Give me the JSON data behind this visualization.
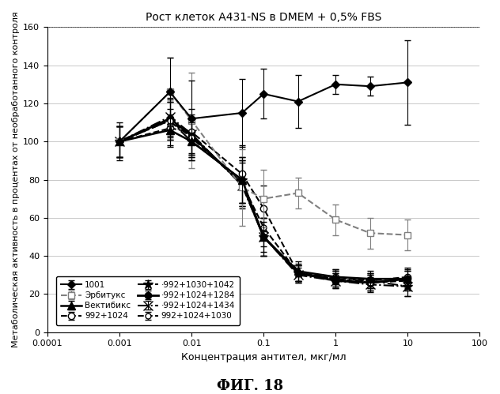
{
  "title": "Рост клеток А431-NS в DMEM + 0,5% FBS",
  "xlabel": "Концентрация антител, мкг/мл",
  "ylabel": "Метаболическая активность в процентах от необработанного контроля",
  "fig_label": "ФИГ. 18",
  "xlim": [
    0.0001,
    100
  ],
  "ylim": [
    0,
    160
  ],
  "yticks": [
    0,
    20,
    40,
    60,
    80,
    100,
    120,
    140,
    160
  ],
  "xtick_vals": [
    0.0001,
    0.001,
    0.01,
    0.1,
    1,
    10,
    100
  ],
  "xtick_labels": [
    "0.0001",
    "0.001",
    "0.01",
    "0.1",
    "1",
    "10",
    "100"
  ],
  "series": [
    {
      "label": "1001",
      "x": [
        0.001,
        0.005,
        0.01,
        0.05,
        0.1,
        0.3,
        1,
        3,
        10
      ],
      "y": [
        100,
        126,
        112,
        115,
        125,
        121,
        130,
        129,
        131
      ],
      "yerr": [
        8,
        18,
        20,
        18,
        13,
        14,
        5,
        5,
        22
      ],
      "color": "#000000",
      "ecolor": "#000000",
      "linestyle": "-",
      "marker": "D",
      "markersize": 5,
      "linewidth": 1.5,
      "markerfacecolor": "#000000",
      "markeredgecolor": "#000000",
      "zorder": 5
    },
    {
      "label": "Эрбитукс",
      "x": [
        0.001,
        0.005,
        0.01,
        0.05,
        0.1,
        0.3,
        1,
        3,
        10
      ],
      "y": [
        100,
        126,
        111,
        76,
        70,
        73,
        59,
        52,
        51
      ],
      "yerr": [
        8,
        18,
        25,
        20,
        15,
        8,
        8,
        8,
        8
      ],
      "color": "#808080",
      "ecolor": "#808080",
      "linestyle": "--",
      "marker": "s",
      "markersize": 6,
      "linewidth": 1.5,
      "markerfacecolor": "#ffffff",
      "markeredgecolor": "#808080",
      "zorder": 4
    },
    {
      "label": "Вектибикс",
      "x": [
        0.001,
        0.005,
        0.01,
        0.05,
        0.1,
        0.3,
        1,
        3,
        10
      ],
      "y": [
        100,
        106,
        100,
        80,
        50,
        32,
        29,
        28,
        28
      ],
      "yerr": [
        10,
        8,
        10,
        12,
        8,
        5,
        4,
        4,
        4
      ],
      "color": "#000000",
      "ecolor": "#000000",
      "linestyle": "-",
      "marker": "^",
      "markersize": 7,
      "linewidth": 1.8,
      "markerfacecolor": "#000000",
      "markeredgecolor": "#000000",
      "zorder": 6
    },
    {
      "label": "992+1024",
      "x": [
        0.001,
        0.005,
        0.01,
        0.05,
        0.1,
        0.3,
        1,
        3,
        10
      ],
      "y": [
        100,
        107,
        105,
        83,
        65,
        31,
        29,
        27,
        29
      ],
      "yerr": [
        8,
        10,
        12,
        15,
        12,
        5,
        4,
        4,
        5
      ],
      "color": "#000000",
      "ecolor": "#000000",
      "linestyle": "--",
      "marker": "o",
      "markersize": 6,
      "linewidth": 1.5,
      "markerfacecolor": "#ffffff",
      "markeredgecolor": "#000000",
      "zorder": 3
    },
    {
      "label": "992+1030+1042",
      "x": [
        0.001,
        0.005,
        0.01,
        0.05,
        0.1,
        0.3,
        1,
        3,
        10
      ],
      "y": [
        100,
        111,
        100,
        80,
        50,
        31,
        28,
        27,
        24
      ],
      "yerr": [
        8,
        10,
        10,
        12,
        10,
        4,
        4,
        4,
        5
      ],
      "color": "#000000",
      "ecolor": "#000000",
      "linestyle": "-.",
      "marker": "*",
      "markersize": 9,
      "linewidth": 1.5,
      "markerfacecolor": "#000000",
      "markeredgecolor": "#000000",
      "zorder": 3
    },
    {
      "label": "992+1024+1284",
      "x": [
        0.001,
        0.005,
        0.01,
        0.05,
        0.1,
        0.3,
        1,
        3,
        10
      ],
      "y": [
        100,
        112,
        103,
        78,
        50,
        31,
        27,
        26,
        28
      ],
      "yerr": [
        8,
        10,
        10,
        12,
        10,
        4,
        4,
        4,
        5
      ],
      "color": "#000000",
      "ecolor": "#000000",
      "linestyle": "-",
      "marker": "o",
      "markersize": 6,
      "linewidth": 2.0,
      "markerfacecolor": "#000000",
      "markeredgecolor": "#000000",
      "zorder": 3
    },
    {
      "label": "992+1024+1434",
      "x": [
        0.001,
        0.005,
        0.01,
        0.05,
        0.1,
        0.3,
        1,
        3,
        10
      ],
      "y": [
        100,
        113,
        104,
        77,
        50,
        30,
        27,
        25,
        24
      ],
      "yerr": [
        8,
        10,
        10,
        12,
        10,
        4,
        4,
        4,
        5
      ],
      "color": "#000000",
      "ecolor": "#000000",
      "linestyle": "-.",
      "marker": "x",
      "markersize": 8,
      "linewidth": 1.5,
      "markerfacecolor": "#000000",
      "markeredgecolor": "#000000",
      "zorder": 3
    },
    {
      "label": "992+1024+1030",
      "x": [
        0.001,
        0.005,
        0.01,
        0.05,
        0.1,
        0.3,
        1,
        3,
        10
      ],
      "y": [
        100,
        111,
        102,
        78,
        55,
        31,
        28,
        26,
        27
      ],
      "yerr": [
        8,
        10,
        10,
        12,
        10,
        4,
        4,
        4,
        5
      ],
      "color": "#000000",
      "ecolor": "#000000",
      "linestyle": "--",
      "marker": "o",
      "markersize": 5,
      "linewidth": 1.5,
      "markerfacecolor": "#ffffff",
      "markeredgecolor": "#000000",
      "zorder": 3
    }
  ],
  "legend_col1": [
    "1001",
    "Вектибикс",
    "992+1030+1042",
    "992+1024+1434"
  ],
  "legend_col2": [
    "Эрбитукс",
    "992+1024",
    "992+1024+1284",
    "992+1024+1030"
  ],
  "legend_dot_prefix": [
    "992+1030+1042",
    "992+1024+1284",
    "992+1024+1434"
  ]
}
